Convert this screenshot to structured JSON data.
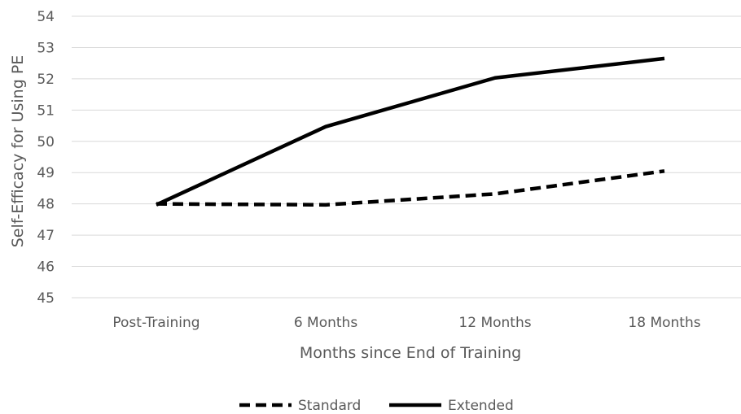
{
  "chart_data": {
    "type": "line",
    "title": "",
    "xlabel": "Months since End of Training",
    "ylabel": "Self-Efficacy for Using PE",
    "categories": [
      "Post-Training",
      "6 Months",
      "12 Months",
      "18 Months"
    ],
    "ylim": [
      45,
      54
    ],
    "yticks": [
      "45",
      "46",
      "47",
      "48",
      "49",
      "50",
      "51",
      "52",
      "53",
      "54"
    ],
    "grid": true,
    "legend_position": "bottom",
    "series": [
      {
        "name": "Standard",
        "style": "dashed",
        "color": "#000000",
        "values": [
          48.0,
          47.97,
          48.32,
          49.05
        ]
      },
      {
        "name": "Extended",
        "style": "solid",
        "color": "#000000",
        "values": [
          47.97,
          50.47,
          52.03,
          52.65
        ]
      }
    ]
  }
}
